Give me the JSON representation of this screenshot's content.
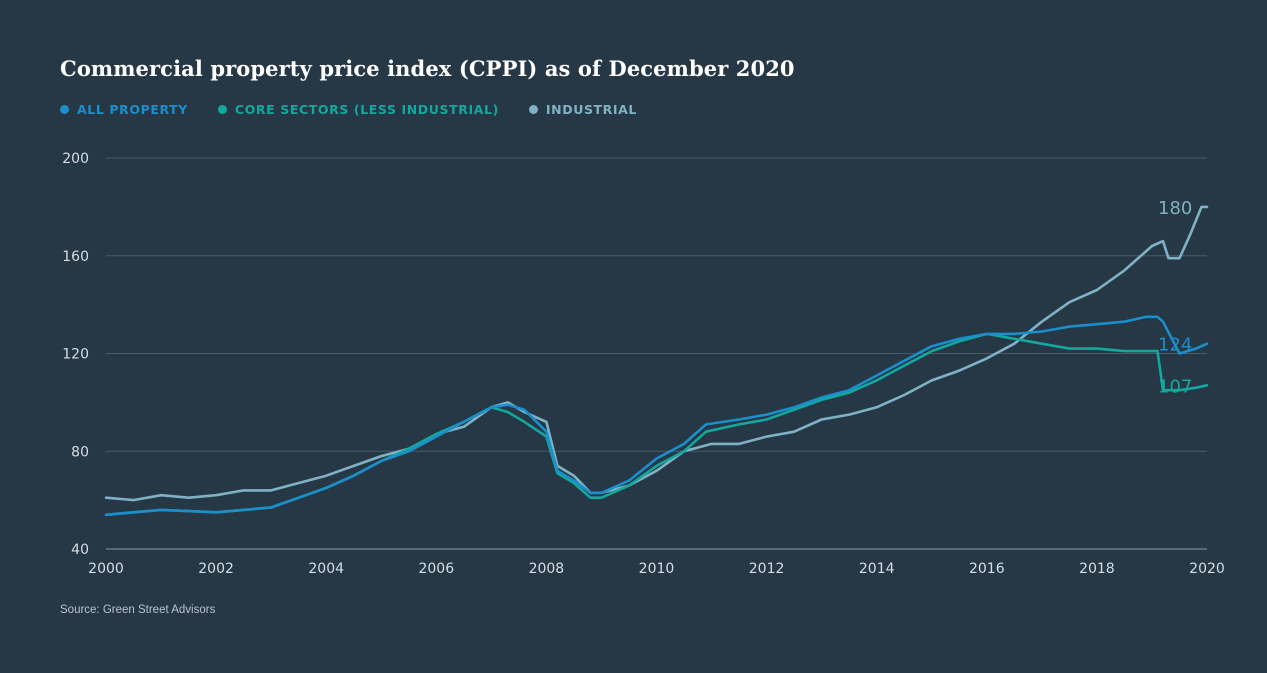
{
  "title": "Commercial property price index (CPPI) as of December 2020",
  "source": "Source: Green Street Advisors",
  "legend": [
    {
      "label": "ALL PROPERTY",
      "color": "#1a8fcc"
    },
    {
      "label": "CORE SECTORS (LESS INDUSTRIAL)",
      "color": "#13a89e"
    },
    {
      "label": "INDUSTRIAL",
      "color": "#7fb2c4"
    }
  ],
  "chart_data": {
    "type": "line",
    "title": "Commercial property price index (CPPI) as of December 2020",
    "xlabel": "",
    "ylabel": "",
    "xlim": [
      2000,
      2020
    ],
    "ylim": [
      40,
      200
    ],
    "grid": true,
    "legend_position": "top-left",
    "x_ticks": [
      "2000",
      "2002",
      "2004",
      "2006",
      "2008",
      "2010",
      "2012",
      "2014",
      "2016",
      "2018",
      "2020"
    ],
    "y_ticks": [
      "40",
      "80",
      "120",
      "160",
      "200"
    ],
    "end_labels": [
      "180",
      "124",
      "107"
    ],
    "series": [
      {
        "name": "ALL PROPERTY",
        "color": "#1a8fcc",
        "end_label": "124",
        "x": [
          2000,
          2000.5,
          2001,
          2001.5,
          2002,
          2002.5,
          2003,
          2003.5,
          2004,
          2004.5,
          2005,
          2005.5,
          2006,
          2006.5,
          2007,
          2007.3,
          2007.6,
          2008,
          2008.2,
          2008.5,
          2008.8,
          2009,
          2009.5,
          2010,
          2010.5,
          2010.9,
          2011.5,
          2012,
          2012.5,
          2013,
          2013.5,
          2014,
          2014.5,
          2015,
          2015.5,
          2016,
          2016.5,
          2017,
          2017.5,
          2018,
          2018.5,
          2018.9,
          2019.1,
          2019.2,
          2019.5,
          2019.8,
          2020
        ],
        "y": [
          54,
          55,
          56,
          55.5,
          55,
          56,
          57,
          61,
          65,
          70,
          76,
          80,
          86,
          92,
          98,
          99,
          97,
          88,
          72,
          68,
          63,
          63,
          68,
          77,
          83,
          91,
          93,
          95,
          98,
          102,
          105,
          111,
          117,
          123,
          126,
          128,
          128,
          129,
          131,
          132,
          133,
          135,
          135,
          133,
          120,
          122,
          124
        ]
      },
      {
        "name": "CORE SECTORS (LESS INDUSTRIAL)",
        "color": "#13a89e",
        "end_label": "107",
        "x": [
          2000,
          2000.5,
          2001,
          2001.5,
          2002,
          2002.5,
          2003,
          2003.5,
          2004,
          2004.5,
          2005,
          2005.5,
          2006,
          2006.5,
          2007,
          2007.3,
          2007.6,
          2008,
          2008.2,
          2008.5,
          2008.8,
          2009,
          2009.5,
          2010,
          2010.5,
          2010.9,
          2011.5,
          2012,
          2012.5,
          2013,
          2013.5,
          2014,
          2014.5,
          2015,
          2015.5,
          2016,
          2016.5,
          2017,
          2017.5,
          2018,
          2018.5,
          2019,
          2019.1,
          2019.2,
          2019.5,
          2019.8,
          2020
        ],
        "y": [
          54,
          55,
          56,
          55.5,
          55,
          56,
          57,
          61,
          65,
          70,
          76,
          81,
          87,
          92,
          98,
          96,
          92,
          86,
          71,
          67,
          61,
          61,
          66,
          74,
          80,
          88,
          91,
          93,
          97,
          101,
          104,
          109,
          115,
          121,
          125,
          128,
          126,
          124,
          122,
          122,
          121,
          121,
          121,
          105,
          105,
          106,
          107
        ]
      },
      {
        "name": "INDUSTRIAL",
        "color": "#7fb2c4",
        "end_label": "180",
        "x": [
          2000,
          2000.5,
          2001,
          2001.5,
          2002,
          2002.5,
          2003,
          2003.5,
          2004,
          2004.5,
          2005,
          2005.5,
          2006,
          2006.5,
          2007,
          2007.3,
          2007.6,
          2008,
          2008.2,
          2008.5,
          2008.8,
          2009,
          2009.5,
          2010,
          2010.5,
          2011,
          2011.5,
          2012,
          2012.5,
          2013,
          2013.5,
          2014,
          2014.5,
          2015,
          2015.5,
          2016,
          2016.5,
          2017,
          2017.5,
          2018,
          2018.5,
          2019,
          2019.2,
          2019.3,
          2019.5,
          2019.7,
          2019.9,
          2020
        ],
        "y": [
          61,
          60,
          62,
          61,
          62,
          64,
          64,
          67,
          70,
          74,
          78,
          81,
          87,
          90,
          98,
          100,
          96,
          92,
          74,
          70,
          63,
          63,
          66,
          72,
          80,
          83,
          83,
          86,
          88,
          93,
          95,
          98,
          103,
          109,
          113,
          118,
          124,
          133,
          141,
          146,
          154,
          164,
          166,
          159,
          159,
          169,
          180,
          180
        ]
      }
    ]
  }
}
